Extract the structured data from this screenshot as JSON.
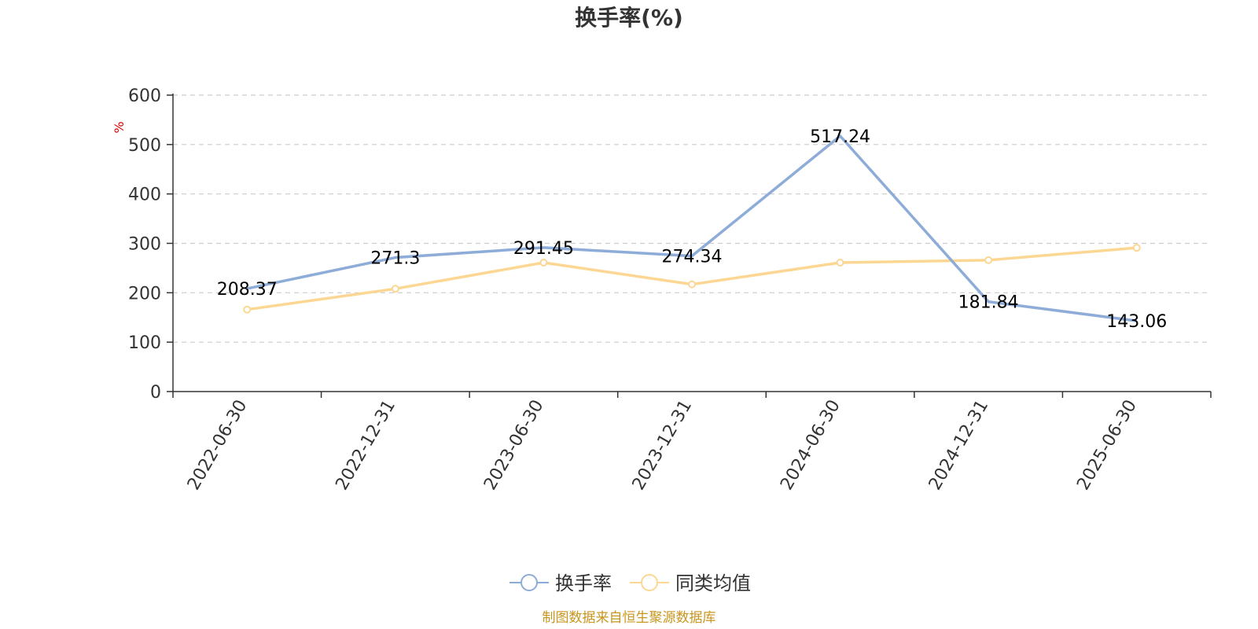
{
  "chart_data": {
    "type": "line",
    "title": "换手率(%)",
    "ylabel": "%",
    "xlabel": "",
    "categories": [
      "2022-06-30",
      "2022-12-31",
      "2023-06-30",
      "2023-12-31",
      "2024-06-30",
      "2024-12-31",
      "2025-06-30"
    ],
    "ylim": [
      0,
      600
    ],
    "yticks": [
      0,
      100,
      200,
      300,
      400,
      500,
      600
    ],
    "grid": "horizontal-dashed",
    "legend_position": "bottom-center",
    "series": [
      {
        "name": "换手率",
        "color": "#8eacd8",
        "values": [
          208.37,
          271.3,
          291.45,
          274.34,
          517.24,
          181.84,
          143.06
        ],
        "labels": [
          "208.37",
          "271.3",
          "291.45",
          "274.34",
          "517.24",
          "181.84",
          "143.06"
        ]
      },
      {
        "name": "同类均值",
        "color": "#fbd793",
        "values": [
          166,
          208,
          261,
          217,
          261,
          266,
          291
        ]
      }
    ],
    "source": "制图数据来自恒生聚源数据库"
  }
}
